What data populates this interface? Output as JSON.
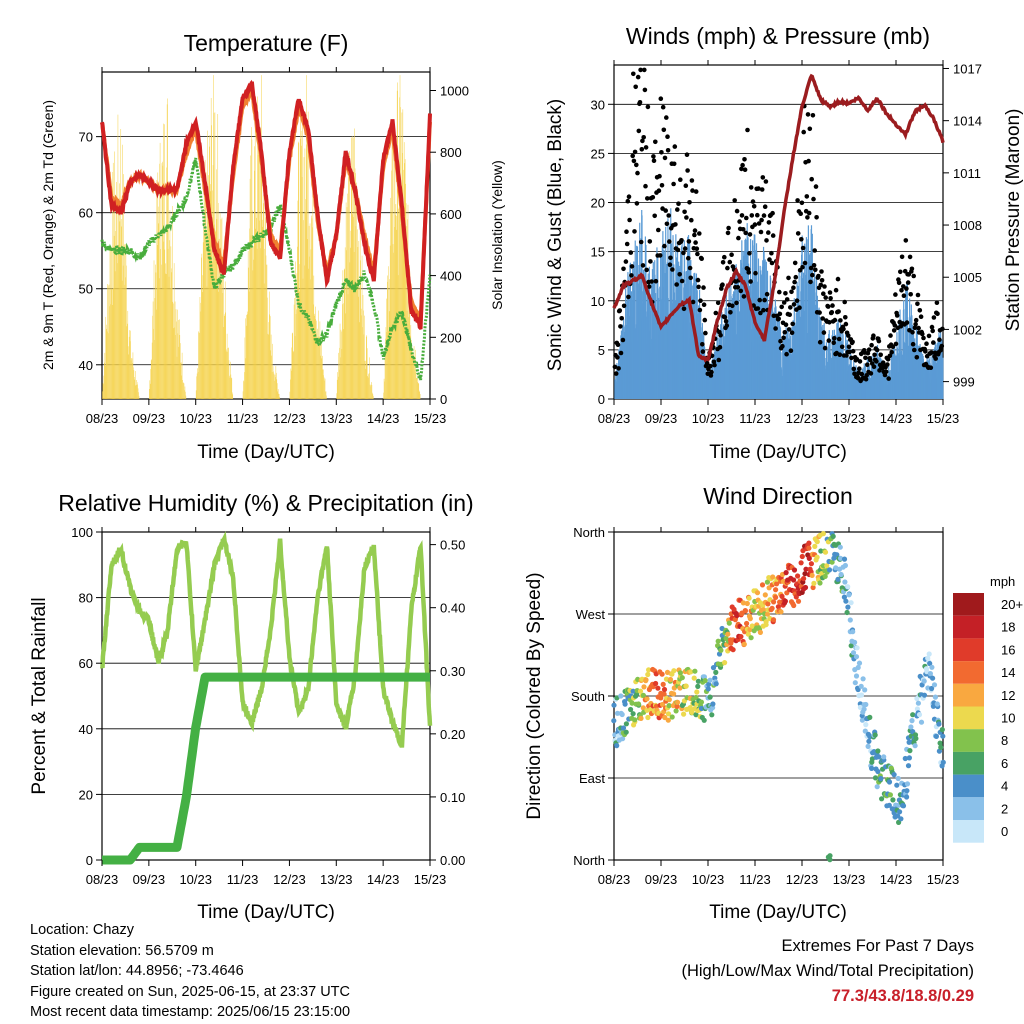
{
  "x_ticks": [
    "08/23",
    "09/23",
    "10/23",
    "11/23",
    "12/23",
    "13/23",
    "14/23",
    "15/23"
  ],
  "panels": {
    "temperature": {
      "title": "Temperature (F)",
      "xlabel": "Time (Day/UTC)",
      "ylabel_left": "2m & 9m T (Red, Orange) & 2m Td (Green)",
      "ylabel_right": "Solar Insolation (Yellow)",
      "left_ticks": [
        "40",
        "50",
        "60",
        "70"
      ],
      "right_ticks": [
        "0",
        "200",
        "400",
        "600",
        "800",
        "1000"
      ]
    },
    "winds": {
      "title": "Winds (mph) & Pressure (mb)",
      "xlabel": "Time (Day/UTC)",
      "ylabel_left": "Sonic Wind & Gust (Blue, Black)",
      "ylabel_right": "Station Pressure (Maroon)",
      "left_ticks": [
        "0",
        "5",
        "10",
        "15",
        "20",
        "25",
        "30"
      ],
      "right_ticks": [
        "999",
        "1002",
        "1005",
        "1008",
        "1011",
        "1014",
        "1017"
      ]
    },
    "humidity": {
      "title": "Relative Humidity (%) & Precipitation (in)",
      "xlabel": "Time (Day/UTC)",
      "ylabel_left": "Percent & Total Rainfall",
      "left_ticks": [
        "0",
        "20",
        "40",
        "60",
        "80",
        "100"
      ],
      "right_ticks": [
        "0.00",
        "0.10",
        "0.20",
        "0.30",
        "0.40",
        "0.50"
      ]
    },
    "direction": {
      "title": "Wind Direction",
      "xlabel": "Time (Day/UTC)",
      "ylabel_left": "Direction (Colored By Speed)",
      "dir_ticks": [
        "North",
        "East",
        "South",
        "West",
        "North"
      ],
      "legend_title": "mph",
      "legend_labels": [
        "20+",
        "18",
        "16",
        "14",
        "12",
        "10",
        "8",
        "6",
        "4",
        "2",
        "0"
      ],
      "legend_colors": [
        "#a01a1c",
        "#c42026",
        "#e03b2a",
        "#f26a30",
        "#f9a840",
        "#ecd94e",
        "#82c24d",
        "#48a264",
        "#4a8fc9",
        "#8ac0e9",
        "#c8e7f9"
      ]
    }
  },
  "footer": {
    "location": "Location: Chazy",
    "elevation": "Station elevation: 56.5709 m",
    "latlon": "Station lat/lon: 44.8956; -73.4646",
    "created": "Figure created on Sun, 2025-06-15, at 23:37 UTC",
    "recent": "Most recent data timestamp: 2025/06/15 23:15:00"
  },
  "extremes": {
    "line1": "Extremes For Past 7 Days",
    "line2": "(High/Low/Max Wind/Total Precipitation)",
    "values": "77.3/43.8/18.8/0.29"
  },
  "colors": {
    "temp2m": "#d02022",
    "temp9m": "#f08030",
    "dewpoint": "#48ad3c",
    "solar": "#f5d24a",
    "wind": "#5b9bd5",
    "gust": "#000000",
    "pressure": "#9b1c1f",
    "rh": "#95cc50",
    "precip": "#44b044"
  },
  "chart_data": [
    {
      "type": "line",
      "title": "Temperature (F)",
      "xlabel": "Time (Day/UTC)",
      "x": [
        8.0,
        8.2,
        8.4,
        8.6,
        8.8,
        9.0,
        9.2,
        9.4,
        9.6,
        9.8,
        10.0,
        10.2,
        10.4,
        10.6,
        10.8,
        11.0,
        11.2,
        11.4,
        11.6,
        11.8,
        12.0,
        12.2,
        12.4,
        12.6,
        12.8,
        13.0,
        13.2,
        13.4,
        13.6,
        13.8,
        14.0,
        14.2,
        14.4,
        14.6,
        14.8,
        15.0
      ],
      "ylim": [
        35.5,
        78.5
      ],
      "y2lim": [
        0,
        1060
      ],
      "series": [
        {
          "axis": "left",
          "values": [
            72,
            61,
            60,
            64,
            65,
            64,
            63,
            63,
            63,
            69,
            72,
            64,
            55,
            52,
            66,
            75,
            77,
            68,
            56,
            54,
            68,
            75,
            71,
            60,
            51,
            57,
            68,
            63,
            56,
            51,
            67,
            72,
            61,
            47,
            45,
            73
          ]
        },
        {
          "axis": "left",
          "values": [
            72,
            62,
            61,
            64,
            65,
            64,
            63,
            63,
            63,
            68,
            71,
            63,
            56,
            53,
            65,
            74,
            76,
            67,
            57,
            55,
            67,
            74,
            70,
            59,
            52,
            57,
            67,
            63,
            57,
            52,
            66,
            71,
            60,
            48,
            46,
            72
          ]
        },
        {
          "axis": "left",
          "values": [
            56,
            55,
            55,
            55,
            54,
            56,
            57,
            58,
            60,
            62,
            67,
            58,
            50,
            52,
            53,
            55,
            56,
            57,
            58,
            61,
            55,
            48,
            46,
            43,
            44,
            48,
            51,
            50,
            52,
            48,
            41,
            45,
            47,
            42,
            38,
            52
          ]
        },
        {
          "axis": "right",
          "values": [
            0,
            600,
            850,
            200,
            0,
            0,
            700,
            900,
            300,
            0,
            0,
            650,
            1000,
            400,
            0,
            0,
            800,
            900,
            200,
            0,
            0,
            750,
            950,
            300,
            0,
            0,
            600,
            850,
            250,
            0,
            0,
            800,
            950,
            300,
            0,
            0
          ]
        }
      ]
    },
    {
      "type": "scatter",
      "title": "Winds (mph) & Pressure (mb)",
      "xlabel": "Time (Day/UTC)",
      "x": [
        8.0,
        8.2,
        8.4,
        8.6,
        8.8,
        9.0,
        9.2,
        9.4,
        9.6,
        9.8,
        10.0,
        10.2,
        10.4,
        10.6,
        10.8,
        11.0,
        11.2,
        11.4,
        11.6,
        11.8,
        12.0,
        12.2,
        12.4,
        12.6,
        12.8,
        13.0,
        13.2,
        13.4,
        13.6,
        13.8,
        14.0,
        14.2,
        14.4,
        14.6,
        14.8,
        15.0
      ],
      "ylim": [
        0,
        34
      ],
      "y2lim": [
        998,
        1017.2
      ],
      "series": [
        {
          "axis": "left",
          "values": [
            1,
            7,
            12,
            14,
            10,
            12,
            14,
            11,
            13,
            9,
            2,
            5,
            8,
            10,
            13,
            12,
            11,
            8,
            5,
            7,
            12,
            13,
            6,
            5,
            6,
            4,
            2,
            3,
            4,
            2,
            5,
            9,
            6,
            3,
            4,
            6
          ]
        },
        {
          "axis": "left",
          "values": [
            2,
            10,
            24,
            27,
            18,
            22,
            25,
            17,
            20,
            14,
            3,
            7,
            12,
            16,
            20,
            18,
            17,
            13,
            8,
            10,
            21,
            24,
            10,
            8,
            9,
            6,
            3,
            4,
            6,
            3,
            8,
            13,
            9,
            5,
            6,
            9
          ]
        },
        {
          "axis": "right",
          "values": [
            1003.2,
            1004.5,
            1004.8,
            1005.1,
            1003.5,
            1002.1,
            1002.8,
            1003.4,
            1003.7,
            1000.5,
            1000.2,
            1002.5,
            1004.4,
            1005.3,
            1004.5,
            1002.4,
            1001.4,
            1004.5,
            1008.4,
            1011.8,
            1014.8,
            1016.6,
            1015.2,
            1014.8,
            1015.1,
            1015.0,
            1015.3,
            1014.6,
            1015.3,
            1014.4,
            1013.8,
            1013.2,
            1014.5,
            1014.9,
            1014.1,
            1012.8
          ]
        }
      ]
    },
    {
      "type": "line",
      "title": "Relative Humidity (%) & Precipitation (in)",
      "xlabel": "Time (Day/UTC)",
      "x": [
        8.0,
        8.2,
        8.4,
        8.6,
        8.8,
        9.0,
        9.2,
        9.4,
        9.6,
        9.8,
        10.0,
        10.2,
        10.4,
        10.6,
        10.8,
        11.0,
        11.2,
        11.4,
        11.6,
        11.8,
        12.0,
        12.2,
        12.4,
        12.6,
        12.8,
        13.0,
        13.2,
        13.4,
        13.6,
        13.8,
        14.0,
        14.2,
        14.4,
        14.6,
        14.8,
        15.0
      ],
      "ylim": [
        0,
        100
      ],
      "y2lim": [
        0,
        0.52
      ],
      "series": [
        {
          "axis": "left",
          "values": [
            58,
            90,
            95,
            83,
            76,
            73,
            60,
            70,
            95,
            97,
            58,
            73,
            90,
            98,
            86,
            48,
            42,
            52,
            70,
            97,
            62,
            45,
            52,
            80,
            96,
            48,
            40,
            56,
            89,
            96,
            52,
            42,
            35,
            76,
            96,
            40
          ]
        },
        {
          "axis": "right",
          "values": [
            0,
            0,
            0,
            0,
            0.02,
            0.02,
            0.02,
            0.02,
            0.02,
            0.1,
            0.21,
            0.29,
            0.29,
            0.29,
            0.29,
            0.29,
            0.29,
            0.29,
            0.29,
            0.29,
            0.29,
            0.29,
            0.29,
            0.29,
            0.29,
            0.29,
            0.29,
            0.29,
            0.29,
            0.29,
            0.29,
            0.29,
            0.29,
            0.29,
            0.29,
            0.29
          ]
        }
      ]
    },
    {
      "type": "scatter",
      "title": "Wind Direction",
      "xlabel": "Time (Day/UTC)",
      "ylabel": "Direction (Colored By Speed)",
      "ylim": [
        0,
        360
      ],
      "x": [
        8.0,
        8.3,
        8.6,
        8.9,
        9.1,
        9.4,
        9.7,
        10.0,
        10.3,
        10.6,
        10.9,
        11.2,
        11.5,
        11.8,
        12.1,
        12.4,
        12.6,
        12.9,
        13.2,
        13.5,
        13.8,
        14.1,
        14.4,
        14.7,
        15.0
      ],
      "directions": [
        150,
        165,
        180,
        185,
        180,
        182,
        185,
        170,
        230,
        260,
        265,
        280,
        290,
        300,
        320,
        330,
        340,
        310,
        200,
        120,
        80,
        60,
        150,
        210,
        110
      ],
      "speeds": [
        2,
        6,
        10,
        14,
        12,
        10,
        9,
        4,
        6,
        16,
        11,
        10,
        14,
        16,
        18,
        8,
        6,
        4,
        2,
        4,
        6,
        4,
        3,
        2,
        3
      ]
    }
  ]
}
